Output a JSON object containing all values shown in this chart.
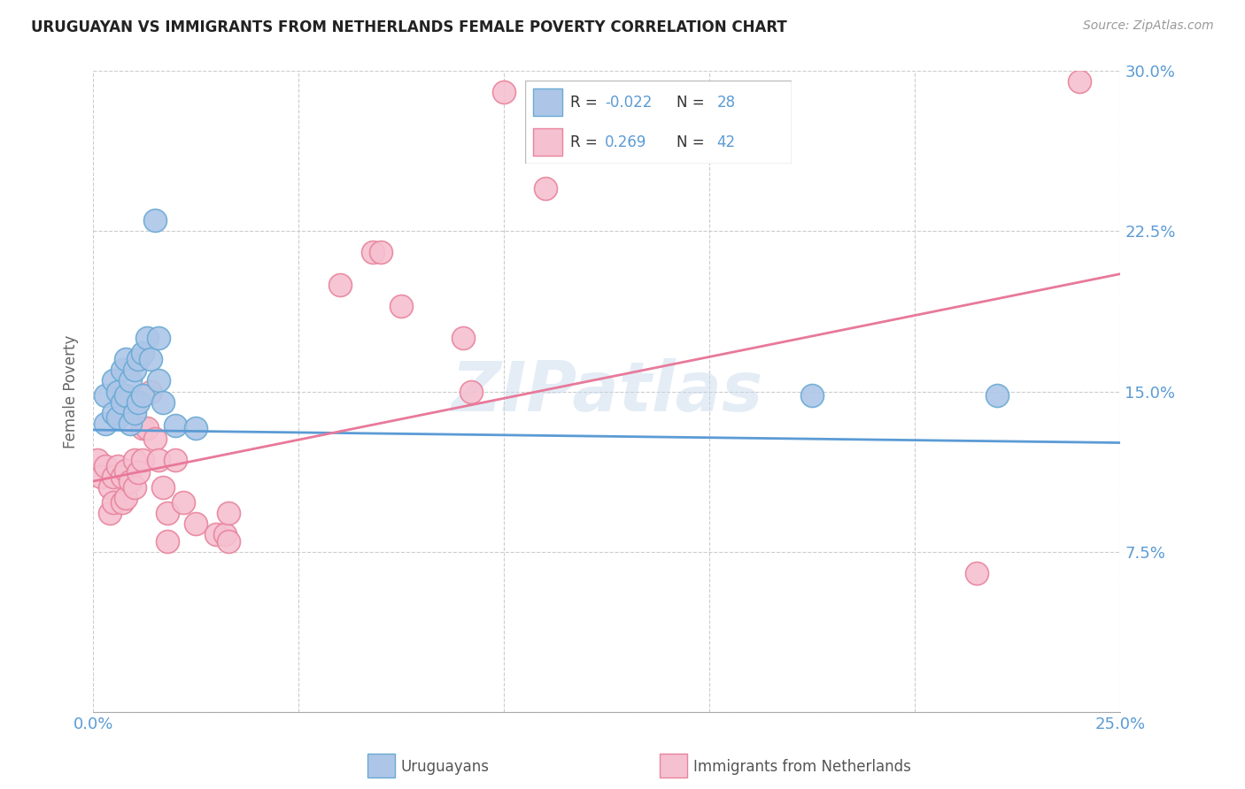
{
  "title": "URUGUAYAN VS IMMIGRANTS FROM NETHERLANDS FEMALE POVERTY CORRELATION CHART",
  "source": "Source: ZipAtlas.com",
  "ylabel": "Female Poverty",
  "xlim": [
    0.0,
    0.25
  ],
  "ylim": [
    0.0,
    0.3
  ],
  "yticks": [
    0.0,
    0.075,
    0.15,
    0.225,
    0.3
  ],
  "ytick_labels": [
    "",
    "7.5%",
    "15.0%",
    "22.5%",
    "30.0%"
  ],
  "xticks": [
    0.0,
    0.05,
    0.1,
    0.15,
    0.2,
    0.25
  ],
  "xtick_labels": [
    "0.0%",
    "",
    "",
    "",
    "",
    "25.0%"
  ],
  "watermark": "ZIPatlas",
  "color_uruguayan_fill": "#adc6e8",
  "color_uruguayan_edge": "#6aaad4",
  "color_netherlands_fill": "#f5c0d0",
  "color_netherlands_edge": "#e8849c",
  "color_line_uruguayan": "#5b9bd5",
  "color_line_netherlands": "#e8799a",
  "color_label_blue": "#5b9bd5",
  "legend_R1": "-0.022",
  "legend_N1": "28",
  "legend_R2": "0.269",
  "legend_N2": "42",
  "uru_line_start_y": 0.132,
  "uru_line_end_y": 0.126,
  "neth_line_start_y": 0.108,
  "neth_line_end_y": 0.205,
  "uruguayan_x": [
    0.003,
    0.003,
    0.005,
    0.005,
    0.006,
    0.006,
    0.007,
    0.007,
    0.008,
    0.008,
    0.009,
    0.009,
    0.01,
    0.01,
    0.011,
    0.011,
    0.012,
    0.012,
    0.013,
    0.014,
    0.015,
    0.016,
    0.016,
    0.017,
    0.02,
    0.025,
    0.175,
    0.22
  ],
  "uruguayan_y": [
    0.148,
    0.135,
    0.155,
    0.14,
    0.15,
    0.138,
    0.16,
    0.145,
    0.165,
    0.148,
    0.155,
    0.135,
    0.16,
    0.14,
    0.165,
    0.145,
    0.168,
    0.148,
    0.175,
    0.165,
    0.23,
    0.175,
    0.155,
    0.145,
    0.134,
    0.133,
    0.148,
    0.148
  ],
  "netherlands_x": [
    0.001,
    0.002,
    0.003,
    0.004,
    0.004,
    0.005,
    0.005,
    0.006,
    0.007,
    0.007,
    0.008,
    0.008,
    0.009,
    0.01,
    0.01,
    0.011,
    0.012,
    0.012,
    0.013,
    0.014,
    0.015,
    0.016,
    0.017,
    0.018,
    0.018,
    0.02,
    0.022,
    0.025,
    0.03,
    0.032,
    0.033,
    0.033,
    0.06,
    0.068,
    0.07,
    0.075,
    0.09,
    0.092,
    0.1,
    0.11,
    0.215,
    0.24
  ],
  "netherlands_y": [
    0.118,
    0.11,
    0.115,
    0.105,
    0.093,
    0.11,
    0.098,
    0.115,
    0.11,
    0.098,
    0.113,
    0.1,
    0.108,
    0.118,
    0.105,
    0.112,
    0.133,
    0.118,
    0.133,
    0.15,
    0.128,
    0.118,
    0.105,
    0.093,
    0.08,
    0.118,
    0.098,
    0.088,
    0.083,
    0.083,
    0.093,
    0.08,
    0.2,
    0.215,
    0.215,
    0.19,
    0.175,
    0.15,
    0.29,
    0.245,
    0.065,
    0.295
  ]
}
